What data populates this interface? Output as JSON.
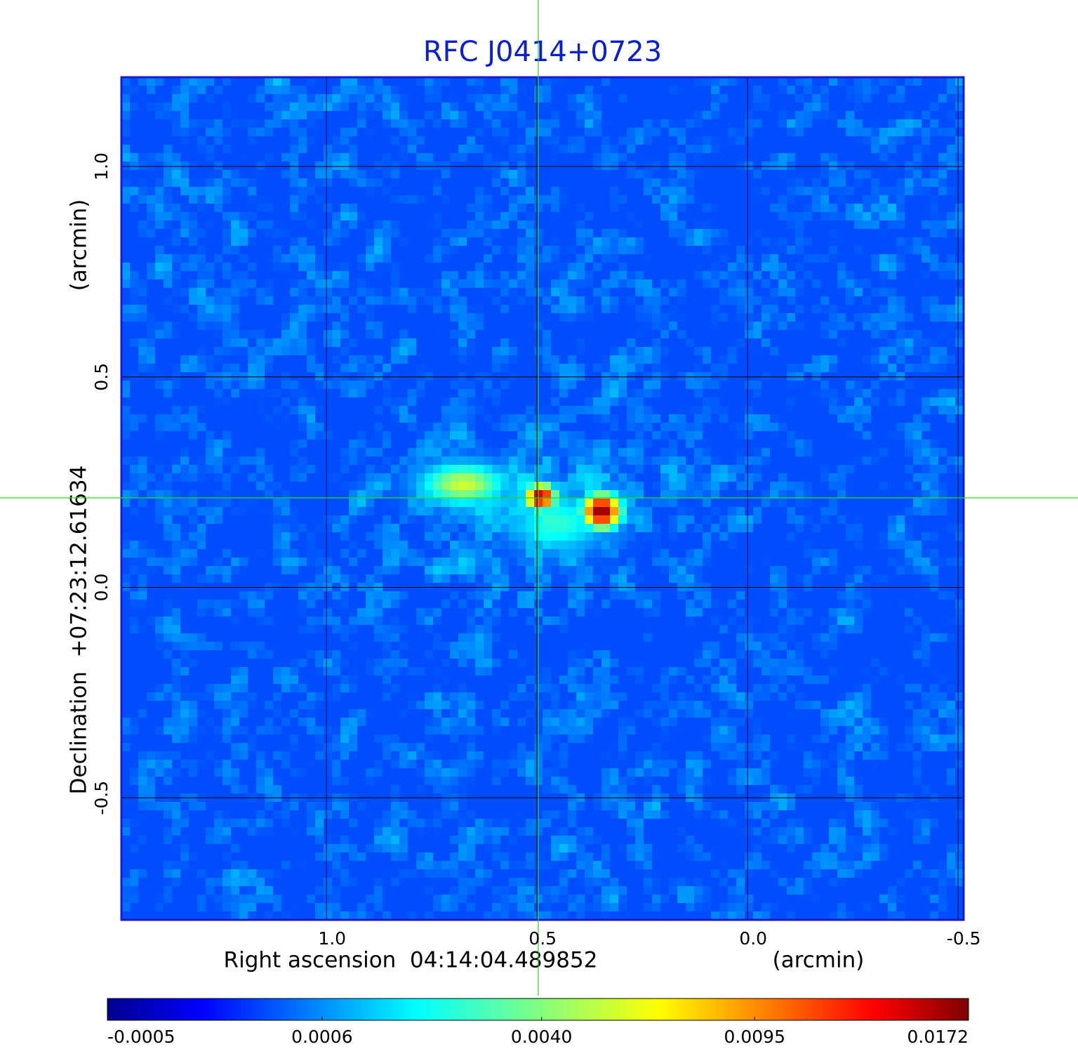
{
  "chart_data": {
    "type": "image",
    "title": "RFC J0414+0723",
    "x_label": "Right ascension  04:14:04.489852",
    "x_unit": "(arcmin)",
    "y_label": "Declination  +07:23:12.61634",
    "y_unit": "(arcmin)",
    "xlim": [
      1.487,
      -0.513
    ],
    "xticks": [
      {
        "value": 1,
        "label": "1.0"
      },
      0.5,
      {
        "value": 0,
        "label": "0.0"
      },
      -0.5
    ],
    "ylim": [
      -0.79,
      1.212
    ],
    "yticks": [
      {
        "value": 1,
        "label": "1.0"
      },
      0.5,
      {
        "value": 0,
        "label": "0.0"
      },
      -0.5
    ],
    "grid": true,
    "colormap": "jet",
    "colorbar_scale": "sqrt",
    "colorbar_lim": [
      -0.0005,
      0.0172
    ],
    "colorbar_ticks": [
      -0.0005,
      0.0006,
      {
        "value": 0.004,
        "label": "0.0040"
      },
      0.0095,
      0.0172
    ]
  }
}
